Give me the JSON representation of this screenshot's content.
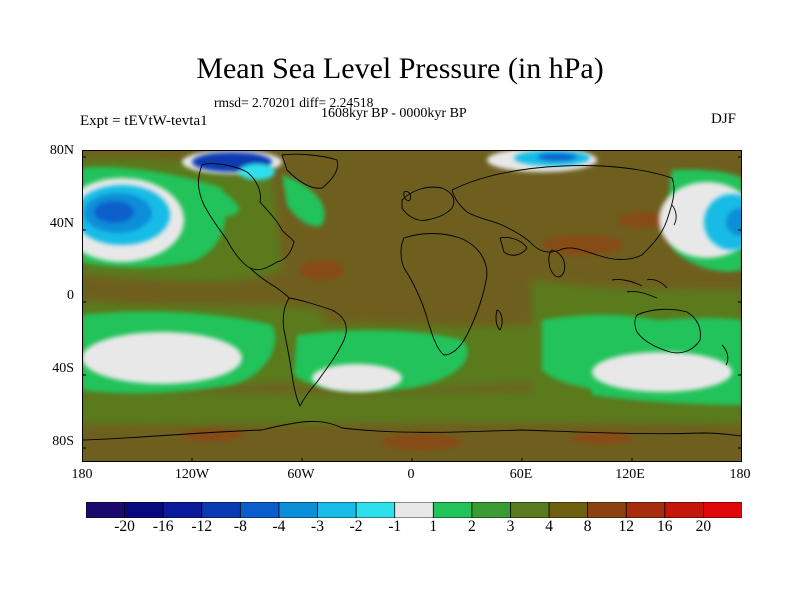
{
  "title": "Mean Sea Level Pressure (in hPa)",
  "stats": "rmsd= 2.70201 diff= 2.24518",
  "period": "1608kyr BP - 0000kyr BP",
  "experiment": "Expt = tEVtW-tevta1",
  "season": "DJF",
  "map": {
    "projection": "cylindrical-equidistant",
    "lon_range": [
      -180,
      180
    ],
    "lat_range": [
      -90,
      90
    ],
    "y_ticks": [
      {
        "label": "80N",
        "lat": 80
      },
      {
        "label": "40N",
        "lat": 40
      },
      {
        "label": "0",
        "lat": 0
      },
      {
        "label": "40S",
        "lat": -40
      },
      {
        "label": "80S",
        "lat": -80
      }
    ],
    "x_ticks": [
      {
        "label": "180",
        "lon": -180
      },
      {
        "label": "120W",
        "lon": -120
      },
      {
        "label": "60W",
        "lon": -60
      },
      {
        "label": "0",
        "lon": 0
      },
      {
        "label": "60E",
        "lon": 60
      },
      {
        "label": "120E",
        "lon": 120
      },
      {
        "label": "180",
        "lon": 180
      }
    ]
  },
  "colorbar": {
    "colors": [
      "#1a0a6e",
      "#08087e",
      "#0a1a9a",
      "#0a3ab2",
      "#0a5ecc",
      "#0a8ed8",
      "#18bce6",
      "#2ee0ec",
      "#e8e8e8",
      "#22c35a",
      "#3a9a34",
      "#5a7a1e",
      "#6e5e10",
      "#8a4210",
      "#a52c0c",
      "#c4160a",
      "#e00808"
    ],
    "labels": [
      "-20",
      "-16",
      "-12",
      "-8",
      "-4",
      "-3",
      "-2",
      "-1",
      "1",
      "2",
      "3",
      "4",
      "8",
      "12",
      "16",
      "20"
    ]
  },
  "colors": {
    "land_fill": "#6f5f1f",
    "ocean_band": "#5a7a1e",
    "bright_green": "#22c35a",
    "white_zone": "#e8e8e8",
    "brown_patch": "#8a4a14",
    "blue_low": "#18bce6",
    "coast": "#000000"
  }
}
